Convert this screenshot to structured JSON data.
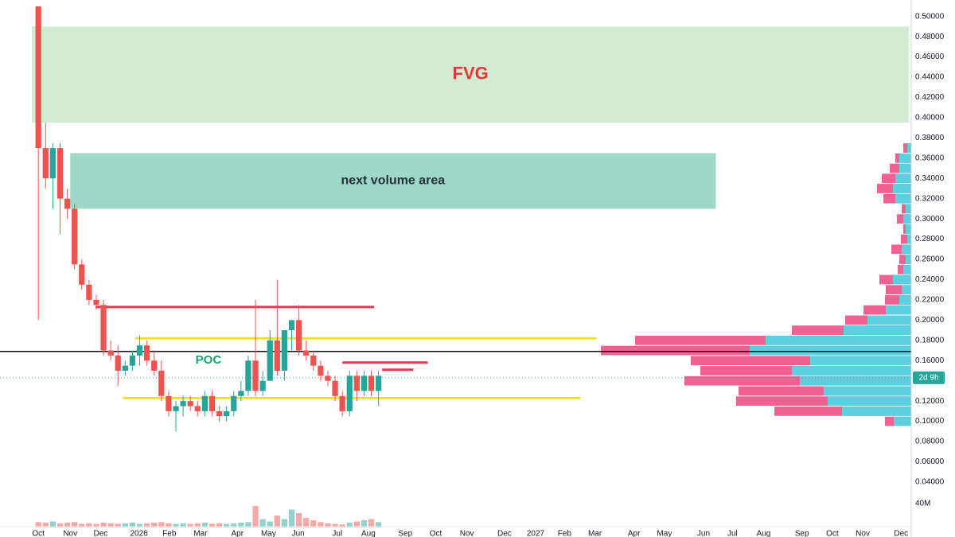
{
  "chart_data": {
    "type": "candlestick",
    "xlim": [
      -5.3,
      120.6
    ],
    "ylim": [
      0.025,
      0.51
    ],
    "xticks": [
      {
        "value": 0,
        "label": "Oct"
      },
      {
        "value": 4.4,
        "label": "Nov"
      },
      {
        "value": 8.6,
        "label": "Dec"
      },
      {
        "value": 13.9,
        "label": "2026"
      },
      {
        "value": 18.1,
        "label": "Feb"
      },
      {
        "value": 22.4,
        "label": "Mar"
      },
      {
        "value": 27.5,
        "label": "Apr"
      },
      {
        "value": 31.8,
        "label": "May"
      },
      {
        "value": 35.9,
        "label": "Jun"
      },
      {
        "value": 41.3,
        "label": "Jul"
      },
      {
        "value": 45.6,
        "label": "Aug"
      },
      {
        "value": 50.7,
        "label": "Sep"
      },
      {
        "value": 54.9,
        "label": "Oct"
      },
      {
        "value": 59.2,
        "label": "Nov"
      },
      {
        "value": 64.4,
        "label": "Dec"
      },
      {
        "value": 68.7,
        "label": "2027"
      },
      {
        "value": 72.7,
        "label": "Feb"
      },
      {
        "value": 76.9,
        "label": "Mar"
      },
      {
        "value": 82.3,
        "label": "Apr"
      },
      {
        "value": 86.5,
        "label": "May"
      },
      {
        "value": 91.9,
        "label": "Jun"
      },
      {
        "value": 95.9,
        "label": "Jul"
      },
      {
        "value": 100.2,
        "label": "Aug"
      },
      {
        "value": 105.5,
        "label": "Sep"
      },
      {
        "value": 109.7,
        "label": "Oct"
      },
      {
        "value": 113.9,
        "label": "Nov"
      },
      {
        "value": 119.2,
        "label": "Dec"
      }
    ],
    "yticks": [
      {
        "value": 0.04,
        "label": "0.04000"
      },
      {
        "value": 0.06,
        "label": "0.06000"
      },
      {
        "value": 0.08,
        "label": "0.08000"
      },
      {
        "value": 0.1,
        "label": "0.10000"
      },
      {
        "value": 0.12,
        "label": "0.12000"
      },
      {
        "value": 0.16,
        "label": "0.16000"
      },
      {
        "value": 0.18,
        "label": "0.18000"
      },
      {
        "value": 0.2,
        "label": "0.20000"
      },
      {
        "value": 0.22,
        "label": "0.22000"
      },
      {
        "value": 0.24,
        "label": "0.24000"
      },
      {
        "value": 0.26,
        "label": "0.26000"
      },
      {
        "value": 0.28,
        "label": "0.28000"
      },
      {
        "value": 0.3,
        "label": "0.30000"
      },
      {
        "value": 0.32,
        "label": "0.32000"
      },
      {
        "value": 0.34,
        "label": "0.34000"
      },
      {
        "value": 0.36,
        "label": "0.36000"
      },
      {
        "value": 0.38,
        "label": "0.38000"
      },
      {
        "value": 0.4,
        "label": "0.40000"
      },
      {
        "value": 0.42,
        "label": "0.42000"
      },
      {
        "value": 0.44,
        "label": "0.44000"
      },
      {
        "value": 0.46,
        "label": "0.46000"
      },
      {
        "value": 0.48,
        "label": "0.48000"
      },
      {
        "value": 0.5,
        "label": "0.50000"
      }
    ],
    "up_color": "#26a69a",
    "down_color": "#ef5350",
    "open": [
      0.51,
      0.37,
      0.34,
      0.37,
      0.32,
      0.31,
      0.255,
      0.235,
      0.22,
      0.215,
      0.17,
      0.165,
      0.15,
      0.155,
      0.165,
      0.175,
      0.16,
      0.15,
      0.125,
      0.11,
      0.115,
      0.12,
      0.115,
      0.11,
      0.125,
      0.11,
      0.105,
      0.11,
      0.125,
      0.13,
      0.16,
      0.13,
      0.14,
      0.18,
      0.15,
      0.19,
      0.2,
      0.17,
      0.165,
      0.155,
      0.145,
      0.14,
      0.125,
      0.11,
      0.145,
      0.13,
      0.145,
      0.13
    ],
    "high": [
      0.51,
      0.395,
      0.375,
      0.375,
      0.33,
      0.315,
      0.26,
      0.24,
      0.225,
      0.22,
      0.18,
      0.175,
      0.16,
      0.17,
      0.185,
      0.18,
      0.17,
      0.16,
      0.13,
      0.12,
      0.125,
      0.125,
      0.12,
      0.13,
      0.13,
      0.115,
      0.115,
      0.13,
      0.14,
      0.165,
      0.22,
      0.15,
      0.19,
      0.24,
      0.19,
      0.2,
      0.215,
      0.18,
      0.17,
      0.16,
      0.15,
      0.145,
      0.13,
      0.15,
      0.15,
      0.15,
      0.15,
      0.15
    ],
    "low": [
      0.2,
      0.33,
      0.31,
      0.285,
      0.3,
      0.25,
      0.23,
      0.215,
      0.21,
      0.165,
      0.16,
      0.135,
      0.145,
      0.15,
      0.155,
      0.155,
      0.145,
      0.12,
      0.105,
      0.09,
      0.105,
      0.11,
      0.105,
      0.105,
      0.105,
      0.1,
      0.1,
      0.105,
      0.12,
      0.125,
      0.125,
      0.125,
      0.14,
      0.145,
      0.14,
      0.17,
      0.165,
      0.16,
      0.15,
      0.14,
      0.135,
      0.12,
      0.105,
      0.105,
      0.12,
      0.125,
      0.125,
      0.115
    ],
    "close": [
      0.37,
      0.34,
      0.37,
      0.32,
      0.31,
      0.255,
      0.235,
      0.22,
      0.215,
      0.17,
      0.165,
      0.15,
      0.155,
      0.165,
      0.175,
      0.16,
      0.15,
      0.125,
      0.11,
      0.115,
      0.12,
      0.115,
      0.11,
      0.125,
      0.11,
      0.105,
      0.11,
      0.125,
      0.13,
      0.16,
      0.13,
      0.14,
      0.18,
      0.15,
      0.19,
      0.2,
      0.17,
      0.165,
      0.155,
      0.145,
      0.14,
      0.125,
      0.11,
      0.145,
      0.13,
      0.145,
      0.13,
      0.145
    ],
    "volume": [
      9,
      8,
      10,
      7,
      8,
      9,
      6,
      7,
      6,
      8,
      7,
      6,
      7,
      8,
      6,
      7,
      8,
      9,
      7,
      6,
      7,
      6,
      7,
      8,
      6,
      7,
      6,
      7,
      8,
      9,
      36,
      14,
      10,
      20,
      14,
      30,
      24,
      16,
      12,
      9,
      7,
      6,
      5,
      8,
      10,
      12,
      14,
      9
    ],
    "volume_label": "40M",
    "volume_tick": 40,
    "profile_prices": [
      0.1,
      0.11,
      0.12,
      0.13,
      0.14,
      0.15,
      0.16,
      0.17,
      0.18,
      0.19,
      0.2,
      0.21,
      0.22,
      0.23,
      0.24,
      0.25,
      0.26,
      0.27,
      0.28,
      0.29,
      0.3,
      0.31,
      0.32,
      0.33,
      0.34,
      0.35,
      0.36,
      0.37
    ],
    "profile_total": [
      33,
      172,
      220,
      217,
      285,
      265,
      277,
      390,
      347,
      150,
      83,
      60,
      33,
      32,
      40,
      17,
      15,
      25,
      13,
      10,
      18,
      12,
      35,
      43,
      37,
      27,
      20,
      10
    ],
    "profile_up": [
      22,
      87,
      105,
      110,
      140,
      150,
      127,
      203,
      183,
      85,
      55,
      32,
      15,
      12,
      23,
      10,
      7,
      12,
      5,
      7,
      10,
      7,
      20,
      23,
      20,
      15,
      15,
      5
    ],
    "profile_up_color": "#5bd0e0",
    "profile_down_color": "#f06292",
    "zones": [
      {
        "label": "FVG",
        "x": [
          -0.9,
          120.3
        ],
        "y": [
          0.395,
          0.49
        ],
        "color": "#d3ebd3",
        "label_color": "#e53935"
      },
      {
        "label": "next volume area",
        "x": [
          4.4,
          93.6
        ],
        "y": [
          0.31,
          0.365
        ],
        "color": "#9dd8c8",
        "label_color": "#263238"
      }
    ],
    "lines": [
      {
        "x": [
          7.9,
          46.4
        ],
        "y": 0.213,
        "color": "#e53950"
      },
      {
        "x": [
          42.0,
          53.8
        ],
        "y": 0.158,
        "color": "#e53950"
      },
      {
        "x": [
          47.5,
          51.8
        ],
        "y": 0.151,
        "color": "#e53950"
      },
      {
        "x": [
          13.4,
          77.1
        ],
        "y": 0.182,
        "color": "#f5e12a"
      },
      {
        "x": [
          11.7,
          74.9
        ],
        "y": 0.123,
        "color": "#f5e12a"
      },
      {
        "x": [
          -5.3,
          120.6
        ],
        "y": 0.169,
        "color": "#111111"
      }
    ],
    "poc_label": {
      "text": "POC",
      "x": 23.5,
      "y": 0.16,
      "color": "#1aa36b"
    },
    "countdown": "2d 9h",
    "last_price": 0.143
  }
}
